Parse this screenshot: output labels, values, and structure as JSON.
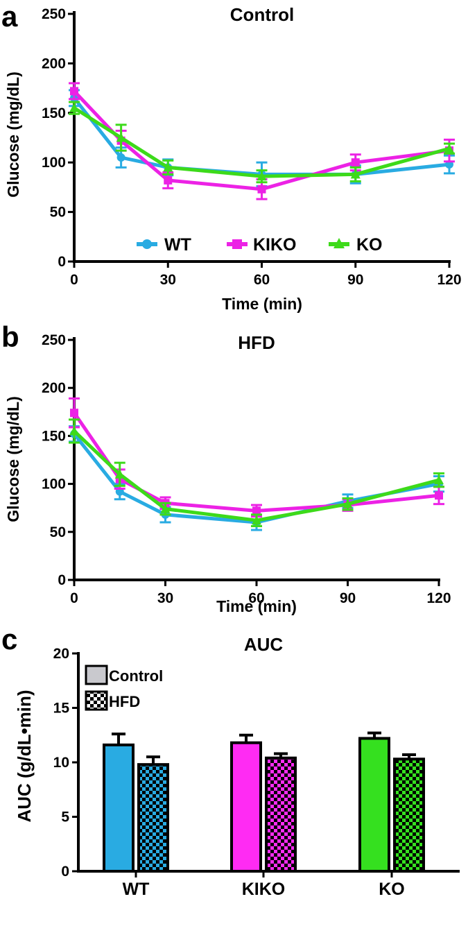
{
  "chart_data": [
    {
      "panel": "a",
      "type": "line",
      "title": "Control",
      "xlabel": "Time (min)",
      "ylabel": "Glucose (mg/dL)",
      "xlim": [
        0,
        120
      ],
      "ylim": [
        0,
        250
      ],
      "xticks": [
        0,
        30,
        60,
        90,
        120
      ],
      "yticks": [
        0,
        50,
        100,
        150,
        200,
        250
      ],
      "x": [
        0,
        15,
        30,
        60,
        90,
        120
      ],
      "legend": "bottom-center",
      "series": [
        {
          "name": "WT",
          "color": "#29ABE2",
          "marker": "circle",
          "values": [
            165,
            105,
            95,
            88,
            88,
            98
          ],
          "errors": [
            8,
            10,
            8,
            12,
            9,
            9
          ]
        },
        {
          "name": "KIKO",
          "color": "#EC22E5",
          "marker": "square",
          "values": [
            172,
            122,
            82,
            73,
            100,
            112
          ],
          "errors": [
            8,
            10,
            8,
            10,
            8,
            11
          ]
        },
        {
          "name": "KO",
          "color": "#3DDA1A",
          "marker": "triangle",
          "values": [
            155,
            125,
            95,
            86,
            88,
            114
          ],
          "errors": [
            6,
            13,
            7,
            6,
            7,
            5
          ]
        }
      ]
    },
    {
      "panel": "b",
      "type": "line",
      "title": "HFD",
      "xlabel": "Time (min)",
      "ylabel": "Glucose (mg/dL)",
      "xlim": [
        0,
        120
      ],
      "ylim": [
        0,
        250
      ],
      "xticks": [
        0,
        30,
        60,
        90,
        120
      ],
      "yticks": [
        0,
        50,
        100,
        150,
        200,
        250
      ],
      "x": [
        0,
        15,
        30,
        60,
        90,
        120
      ],
      "series": [
        {
          "name": "WT",
          "color": "#29ABE2",
          "marker": "circle",
          "values": [
            152,
            92,
            68,
            60,
            82,
            100
          ],
          "errors": [
            8,
            8,
            8,
            8,
            7,
            8
          ]
        },
        {
          "name": "KIKO",
          "color": "#EC22E5",
          "marker": "square",
          "values": [
            174,
            105,
            80,
            72,
            78,
            88
          ],
          "errors": [
            15,
            10,
            6,
            6,
            6,
            9
          ]
        },
        {
          "name": "KO",
          "color": "#3DDA1A",
          "marker": "triangle",
          "values": [
            155,
            110,
            74,
            62,
            79,
            104
          ],
          "errors": [
            12,
            12,
            6,
            6,
            6,
            7
          ]
        }
      ]
    },
    {
      "panel": "c",
      "type": "bar",
      "title": "AUC",
      "xlabel": "",
      "ylabel": "AUC (g/dL•min)",
      "ylim": [
        0,
        20
      ],
      "yticks": [
        0,
        5,
        10,
        15,
        20
      ],
      "categories": [
        "WT",
        "KIKO",
        "KO"
      ],
      "category_colors": [
        "#29ABE2",
        "#FF2BF3",
        "#35E01F"
      ],
      "legend": "top-left",
      "legend_swatch_color": "#C9C9CE",
      "series": [
        {
          "name": "Control",
          "pattern": "solid",
          "values": [
            11.6,
            11.8,
            12.2
          ],
          "errors": [
            1.0,
            0.7,
            0.5
          ]
        },
        {
          "name": "HFD",
          "pattern": "checkered",
          "values": [
            9.8,
            10.4,
            10.3
          ],
          "errors": [
            0.7,
            0.4,
            0.4
          ]
        }
      ]
    }
  ]
}
